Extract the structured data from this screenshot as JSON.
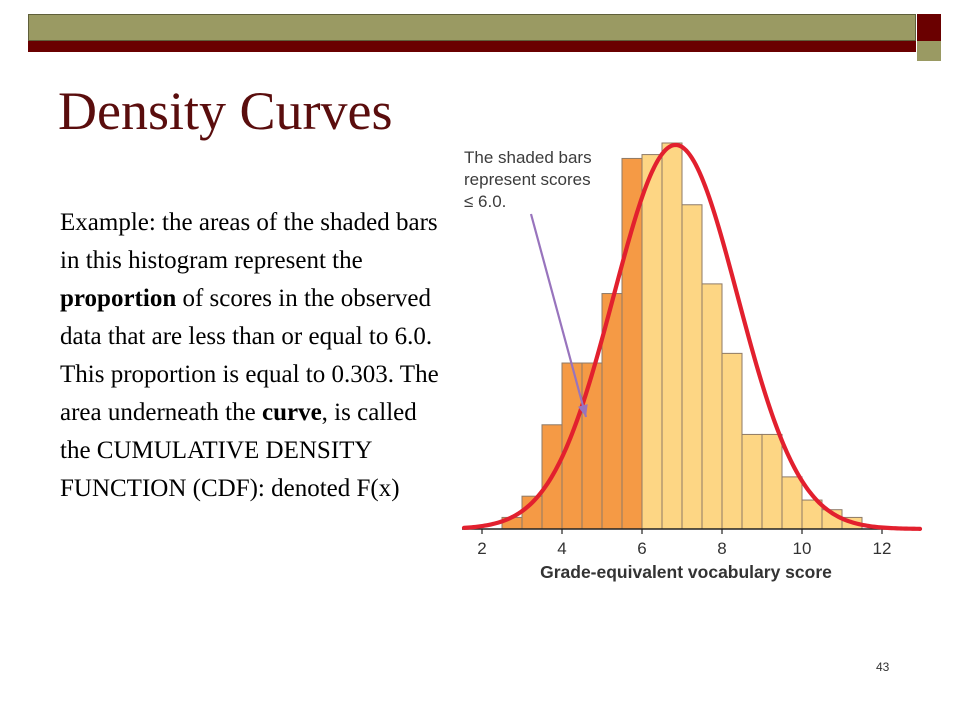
{
  "slide": {
    "title": "Density Curves",
    "body": {
      "part1": "Example:  the areas of the shaded bars in this histogram represent the ",
      "bold1": "proportion",
      "part2": " of scores in the observed data that are less than or equal to 6.0.  This proportion is equal to 0.303. The area underneath the ",
      "bold2": "curve",
      "part3": ", is called the CUMULATIVE DENSITY FUNCTION (CDF): denoted F(x)"
    },
    "page_number": "43"
  },
  "chart_data": {
    "type": "bar",
    "xlabel": "Grade-equivalent vocabulary score",
    "ylabel": "",
    "xlim": [
      1.5,
      13.0
    ],
    "x_ticks": [
      "2",
      "4",
      "6",
      "8",
      "10",
      "12"
    ],
    "x_tick_values": [
      2,
      4,
      6,
      8,
      10,
      12
    ],
    "bin_width": 0.5,
    "bins": [
      {
        "start": 2.5,
        "value": 0.03
      },
      {
        "start": 3.0,
        "value": 0.085
      },
      {
        "start": 3.5,
        "value": 0.27
      },
      {
        "start": 4.0,
        "value": 0.43
      },
      {
        "start": 4.5,
        "value": 0.43
      },
      {
        "start": 5.0,
        "value": 0.61
      },
      {
        "start": 5.5,
        "value": 0.96
      },
      {
        "start": 6.0,
        "value": 0.97
      },
      {
        "start": 6.5,
        "value": 1.0
      },
      {
        "start": 7.0,
        "value": 0.84
      },
      {
        "start": 7.5,
        "value": 0.635
      },
      {
        "start": 8.0,
        "value": 0.455
      },
      {
        "start": 8.5,
        "value": 0.245
      },
      {
        "start": 9.0,
        "value": 0.245
      },
      {
        "start": 9.5,
        "value": 0.135
      },
      {
        "start": 10.0,
        "value": 0.075
      },
      {
        "start": 10.5,
        "value": 0.05
      },
      {
        "start": 11.0,
        "value": 0.03
      }
    ],
    "shaded_threshold": 6.0,
    "curve": {
      "type": "normal",
      "mean": 6.84,
      "sd": 1.55,
      "peak": 0.995
    },
    "annotation": {
      "lines": [
        "The shaded bars",
        "represent scores",
        "≤ 6.0."
      ],
      "arrow_target_x": 4.6
    },
    "colors": {
      "shaded": "#f59a45",
      "unshaded": "#fdd684",
      "bar_outline": "#8e7a66",
      "curve": "#e2202e",
      "arrow": "#9874bd",
      "annotation_text": "#3c3c3c"
    }
  }
}
